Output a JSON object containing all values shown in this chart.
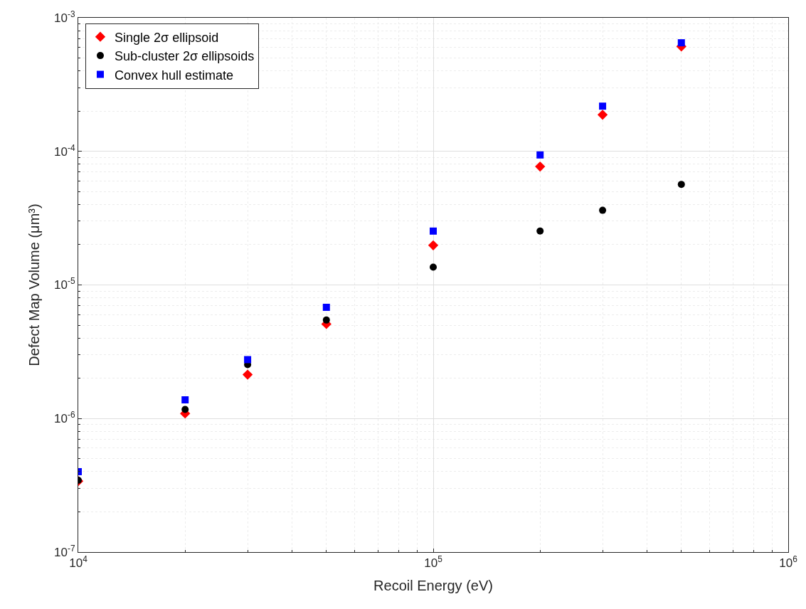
{
  "chart_data": {
    "type": "scatter",
    "xlabel": "Recoil Energy (eV)",
    "ylabel": "Defect Map Volume (μm³)",
    "x": [
      10000,
      20000,
      30000,
      50000,
      100000,
      200000,
      300000,
      500000
    ],
    "series": [
      {
        "name": "Single 2σ ellipsoid",
        "color": "#ff0000",
        "marker": "diamond",
        "values": [
          3.4e-07,
          1.09e-06,
          2.13e-06,
          5.1e-06,
          1.98e-05,
          7.7e-05,
          0.000188,
          0.00061
        ]
      },
      {
        "name": "Sub-cluster 2σ ellipsoids",
        "color": "#000000",
        "marker": "circle",
        "values": [
          3.45e-07,
          1.17e-06,
          2.53e-06,
          5.46e-06,
          1.36e-05,
          2.53e-05,
          3.62e-05,
          5.66e-05
        ]
      },
      {
        "name": "Convex hull estimate",
        "color": "#0000ff",
        "marker": "square",
        "values": [
          4e-07,
          1.38e-06,
          2.76e-06,
          6.8e-06,
          2.53e-05,
          9.4e-05,
          0.000218,
          0.00065
        ]
      }
    ],
    "log": "xy",
    "xlim": [
      10000,
      1000000
    ],
    "ylim": [
      1e-07,
      0.001
    ],
    "xticks": [
      {
        "value": 10000,
        "label": "10$^{4}$"
      },
      {
        "value": 100000,
        "label": "10$^{5}$"
      },
      {
        "value": 1000000,
        "label": "10$^{6}$"
      }
    ],
    "yticks": [
      {
        "value": 1e-07,
        "label": "10$^{-7}$"
      },
      {
        "value": 1e-06,
        "label": "10$^{-6}$"
      },
      {
        "value": 1e-05,
        "label": "10$^{-5}$"
      },
      {
        "value": 0.0001,
        "label": "10$^{-4}$"
      },
      {
        "value": 0.001,
        "label": "10$^{-3}$"
      }
    ],
    "grid": true,
    "legend": "top left"
  }
}
